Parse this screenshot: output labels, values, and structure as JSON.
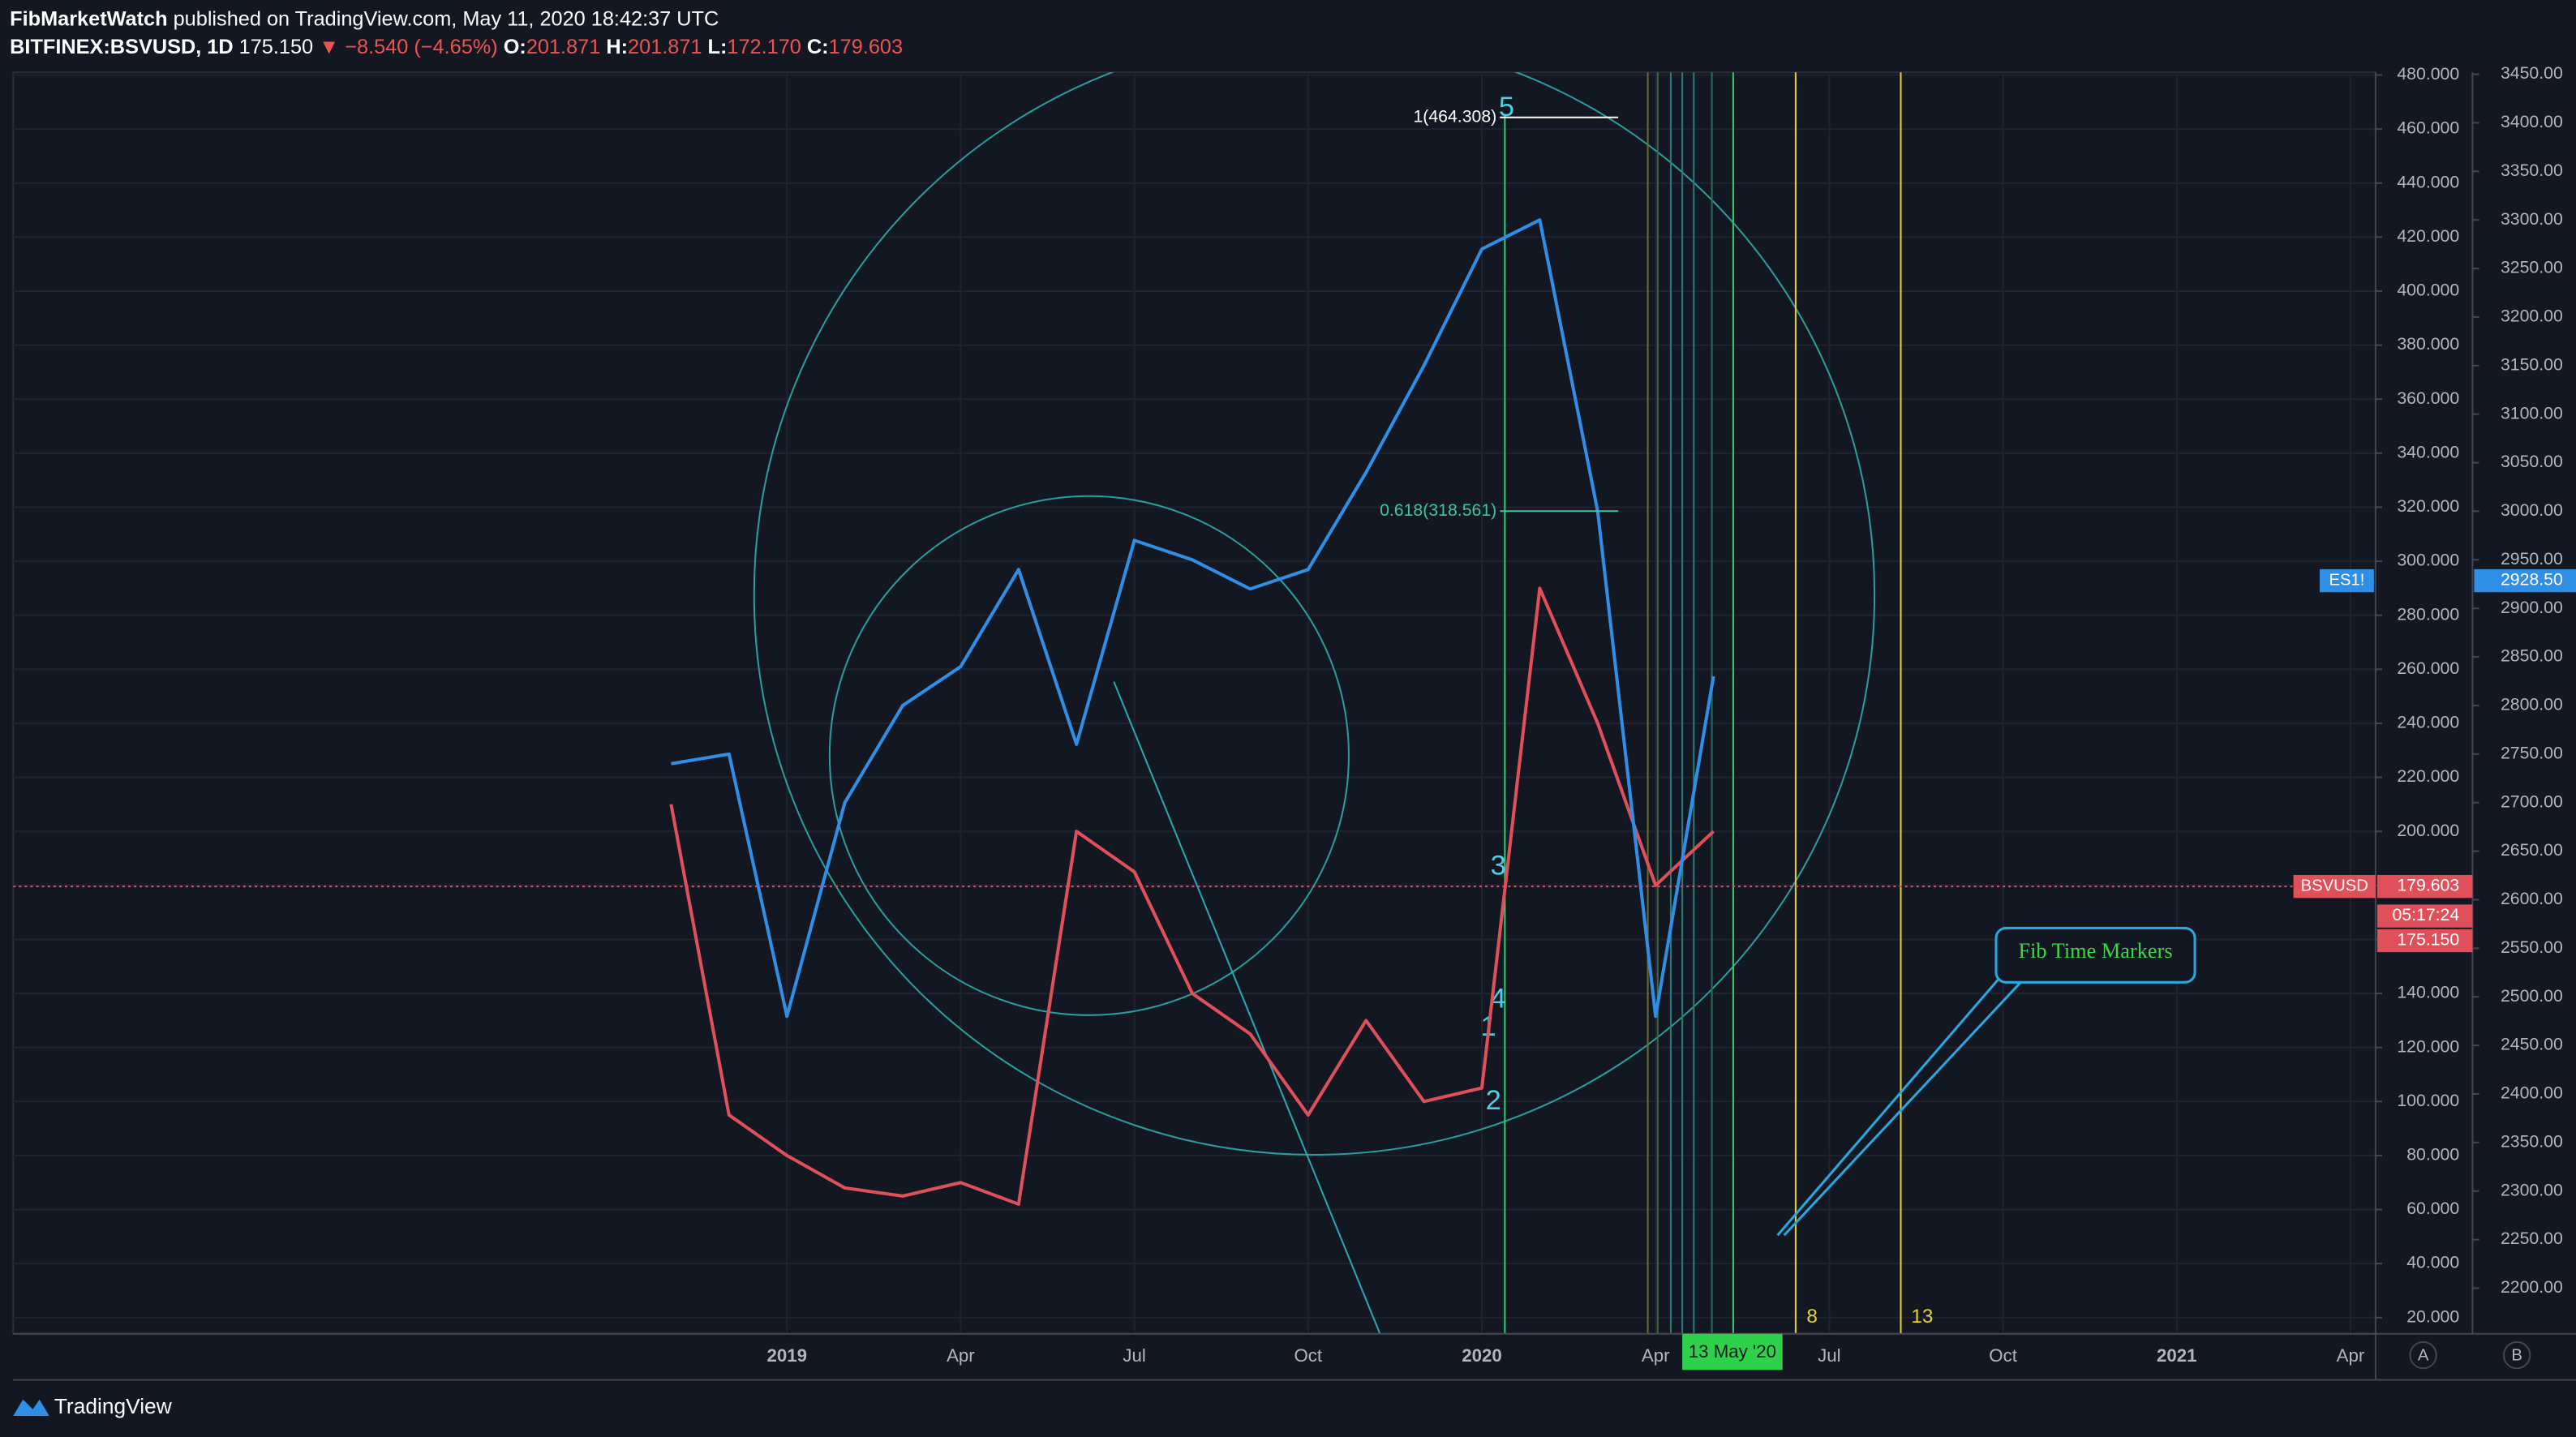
{
  "header": {
    "author": "FibMarketWatch",
    "published": "published on TradingView.com, May 11, 2020 18:42:37 UTC"
  },
  "symbol_line": {
    "symbol": "BITFINEX:BSVUSD, 1D",
    "last": "175.150",
    "change": "▼ −8.540 (−4.65%)",
    "open_label": "O:",
    "open": "201.871",
    "high_label": "H:",
    "high": "201.871",
    "low_label": "L:",
    "low": "172.170",
    "close_label": "C:",
    "close": "179.603"
  },
  "chart_data": {
    "type": "line",
    "x": [
      "2018-11",
      "2018-12",
      "2019-01",
      "2019-02",
      "2019-03",
      "2019-04",
      "2019-05",
      "2019-06",
      "2019-07",
      "2019-08",
      "2019-09",
      "2019-10",
      "2019-11",
      "2019-12",
      "2020-01",
      "2020-02",
      "2020-03",
      "2020-04",
      "2020-05"
    ],
    "xlim": [
      "2017-12",
      "2021-04"
    ],
    "xticks": [
      {
        "value": "2019-01",
        "label": "2019"
      },
      {
        "value": "2019-04",
        "label": "Apr"
      },
      {
        "value": "2019-07",
        "label": "Jul"
      },
      {
        "value": "2019-10",
        "label": "Oct"
      },
      {
        "value": "2020-01",
        "label": "2020"
      },
      {
        "value": "2020-04",
        "label": "Apr"
      },
      {
        "value": "2020-07",
        "label": "Jul"
      },
      {
        "value": "2020-10",
        "label": "Oct"
      },
      {
        "value": "2021-01",
        "label": "2021"
      },
      {
        "value": "2021-04",
        "label": "Apr"
      }
    ],
    "ylim": [
      14,
      481
    ],
    "yticks": [
      {
        "value": 20,
        "label": "20.000"
      },
      {
        "value": 40,
        "label": "40.000"
      },
      {
        "value": 60,
        "label": "60.000"
      },
      {
        "value": 80,
        "label": "80.000"
      },
      {
        "value": 100,
        "label": "100.000"
      },
      {
        "value": 120,
        "label": "120.000"
      },
      {
        "value": 140,
        "label": "140.000"
      },
      {
        "value": 160,
        "label": "160.000"
      },
      {
        "value": 180,
        "label": "180.000"
      },
      {
        "value": 200,
        "label": "200.000"
      },
      {
        "value": 220,
        "label": "220.000"
      },
      {
        "value": 240,
        "label": "240.000"
      },
      {
        "value": 260,
        "label": "260.000"
      },
      {
        "value": 280,
        "label": "280.000"
      },
      {
        "value": 300,
        "label": "300.000"
      },
      {
        "value": 320,
        "label": "320.000"
      },
      {
        "value": 340,
        "label": "340.000"
      },
      {
        "value": 360,
        "label": "360.000"
      },
      {
        "value": 380,
        "label": "380.000"
      },
      {
        "value": 400,
        "label": "400.000"
      },
      {
        "value": 420,
        "label": "420.000"
      },
      {
        "value": 440,
        "label": "440.000"
      },
      {
        "value": 460,
        "label": "460.000"
      },
      {
        "value": 480,
        "label": "480.000"
      }
    ],
    "y2lim": [
      2153,
      3452
    ],
    "y2ticks": [
      {
        "value": 2200,
        "label": "2200.00"
      },
      {
        "value": 2250,
        "label": "2250.00"
      },
      {
        "value": 2300,
        "label": "2300.00"
      },
      {
        "value": 2350,
        "label": "2350.00"
      },
      {
        "value": 2400,
        "label": "2400.00"
      },
      {
        "value": 2450,
        "label": "2450.00"
      },
      {
        "value": 2500,
        "label": "2500.00"
      },
      {
        "value": 2550,
        "label": "2550.00"
      },
      {
        "value": 2600,
        "label": "2600.00"
      },
      {
        "value": 2650,
        "label": "2650.00"
      },
      {
        "value": 2700,
        "label": "2700.00"
      },
      {
        "value": 2750,
        "label": "2750.00"
      },
      {
        "value": 2800,
        "label": "2800.00"
      },
      {
        "value": 2850,
        "label": "2850.00"
      },
      {
        "value": 2900,
        "label": "2900.00"
      },
      {
        "value": 2950,
        "label": "2950.00"
      },
      {
        "value": 3000,
        "label": "3000.00"
      },
      {
        "value": 3050,
        "label": "3050.00"
      },
      {
        "value": 3100,
        "label": "3100.00"
      },
      {
        "value": 3150,
        "label": "3150.00"
      },
      {
        "value": 3200,
        "label": "3200.00"
      },
      {
        "value": 3250,
        "label": "3250.00"
      },
      {
        "value": 3300,
        "label": "3300.00"
      },
      {
        "value": 3350,
        "label": "3350.00"
      },
      {
        "value": 3400,
        "label": "3400.00"
      },
      {
        "value": 3450,
        "label": "3450.00"
      }
    ],
    "grid": true,
    "series": [
      {
        "name": "BSVUSD",
        "color": "#e0505a",
        "values": [
          210,
          95,
          80,
          68,
          65,
          70,
          62,
          200,
          185,
          140,
          125,
          95,
          130,
          100,
          105,
          290,
          240,
          180,
          200
        ],
        "last_value": 179.603
      },
      {
        "name": "ES1!",
        "color": "#2f8ee5",
        "axis": "y2",
        "values": [
          2740,
          2750,
          2480,
          2700,
          2800,
          2840,
          2940,
          2760,
          2970,
          2950,
          2920,
          2940,
          3040,
          3150,
          3270,
          3300,
          3000,
          2480,
          2830
        ],
        "last_value": {
          "value": 2928.5,
          "label": "2928.50"
        }
      }
    ],
    "fib_levels": [
      {
        "label": "1(464.308)",
        "value": 464.308
      },
      {
        "label": "0.618(318.561)",
        "value": 318.561
      }
    ],
    "wave_labels": [
      "5",
      "3",
      "4",
      "1",
      "2"
    ],
    "time_marker_labels": [
      "8",
      "13"
    ],
    "callout": "Fib Time Markers",
    "cursor_date": "13 May '20",
    "price_tags": [
      "05:17:24",
      "175.150"
    ]
  },
  "footer": {
    "brand": "TradingView",
    "scale_buttons": [
      "A",
      "B"
    ]
  }
}
